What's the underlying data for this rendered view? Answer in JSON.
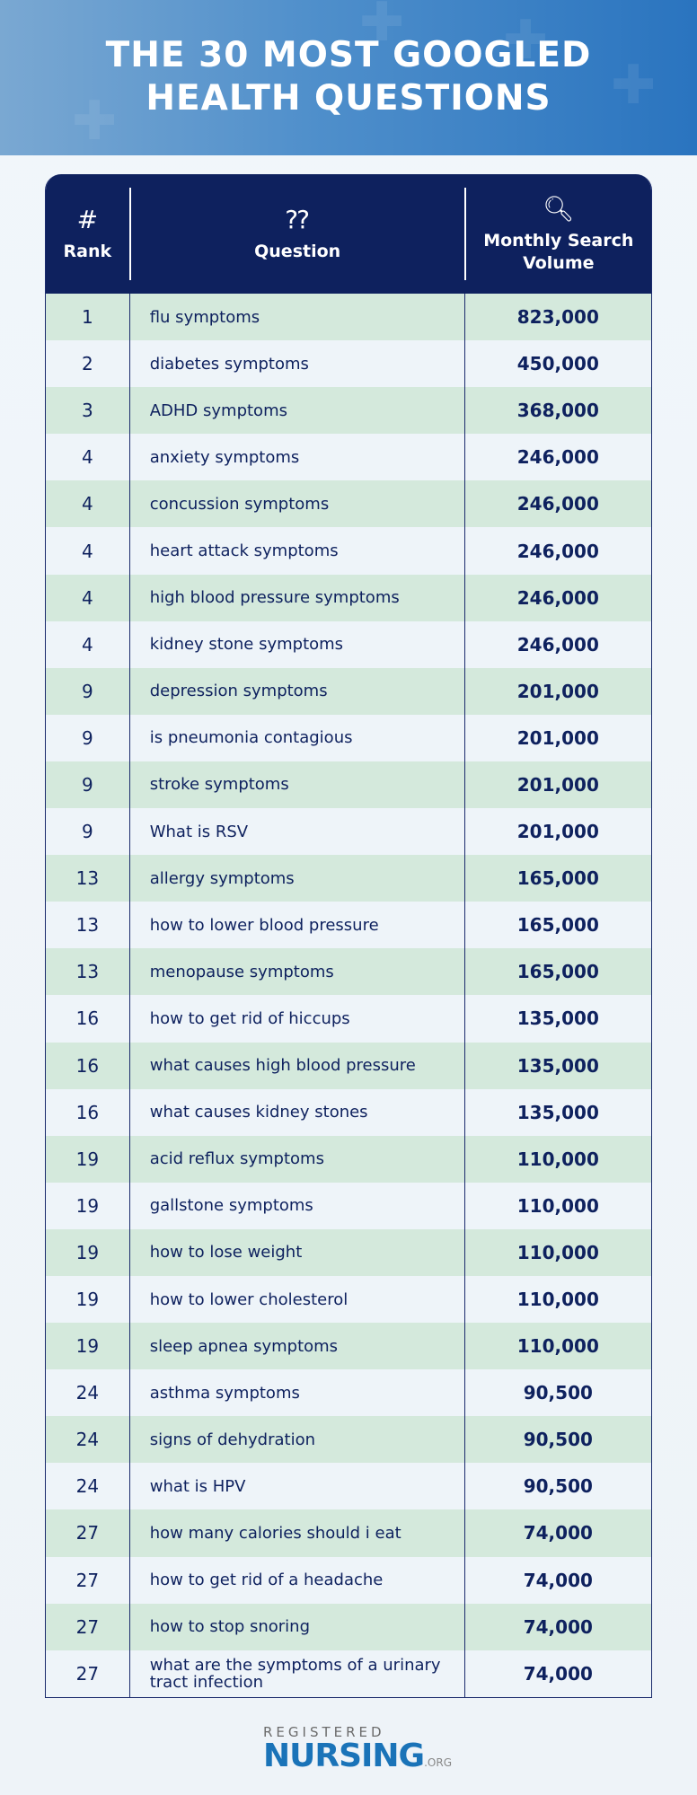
{
  "title": {
    "line1": "THE 30 MOST GOOGLED",
    "line2": "HEALTH QUESTIONS"
  },
  "header": {
    "rank": "Rank",
    "question": "Question",
    "volume": "Monthly Search Volume",
    "icons": [
      "hash-icon",
      "question-cloud-icon",
      "magnifier-icon"
    ]
  },
  "rows": [
    {
      "rank": "1",
      "q": "flu symptoms",
      "v": "823,000"
    },
    {
      "rank": "2",
      "q": "diabetes symptoms",
      "v": "450,000"
    },
    {
      "rank": "3",
      "q": "ADHD symptoms",
      "v": "368,000"
    },
    {
      "rank": "4",
      "q": "anxiety symptoms",
      "v": "246,000"
    },
    {
      "rank": "4",
      "q": "concussion symptoms",
      "v": "246,000"
    },
    {
      "rank": "4",
      "q": "heart attack symptoms",
      "v": "246,000"
    },
    {
      "rank": "4",
      "q": "high blood pressure symptoms",
      "v": "246,000"
    },
    {
      "rank": "4",
      "q": "kidney stone symptoms",
      "v": "246,000"
    },
    {
      "rank": "9",
      "q": "depression symptoms",
      "v": "201,000"
    },
    {
      "rank": "9",
      "q": "is pneumonia contagious",
      "v": "201,000"
    },
    {
      "rank": "9",
      "q": "stroke symptoms",
      "v": "201,000"
    },
    {
      "rank": "9",
      "q": "What is RSV",
      "v": "201,000"
    },
    {
      "rank": "13",
      "q": "allergy symptoms",
      "v": "165,000"
    },
    {
      "rank": "13",
      "q": "how to lower blood pressure",
      "v": "165,000"
    },
    {
      "rank": "13",
      "q": "menopause symptoms",
      "v": "165,000"
    },
    {
      "rank": "16",
      "q": "how to get rid of hiccups",
      "v": "135,000"
    },
    {
      "rank": "16",
      "q": "what causes high blood pressure",
      "v": "135,000"
    },
    {
      "rank": "16",
      "q": "what causes kidney stones",
      "v": "135,000"
    },
    {
      "rank": "19",
      "q": "acid reflux symptoms",
      "v": "110,000"
    },
    {
      "rank": "19",
      "q": "gallstone symptoms",
      "v": "110,000"
    },
    {
      "rank": "19",
      "q": "how to lose weight",
      "v": "110,000"
    },
    {
      "rank": "19",
      "q": "how to lower cholesterol",
      "v": "110,000"
    },
    {
      "rank": "19",
      "q": "sleep apnea symptoms",
      "v": "110,000"
    },
    {
      "rank": "24",
      "q": "asthma symptoms",
      "v": "90,500"
    },
    {
      "rank": "24",
      "q": "signs of dehydration",
      "v": "90,500"
    },
    {
      "rank": "24",
      "q": "what is HPV",
      "v": "90,500"
    },
    {
      "rank": "27",
      "q": "how many calories should i eat",
      "v": "74,000"
    },
    {
      "rank": "27",
      "q": "how to get rid of a headache",
      "v": "74,000"
    },
    {
      "rank": "27",
      "q": "how to stop snoring",
      "v": "74,000"
    },
    {
      "rank": "27",
      "q": "what are the symptoms of a urinary tract infection",
      "v": "74,000"
    }
  ],
  "logo": {
    "top": "REGISTERED",
    "main": "NURSING",
    "suffix": ".ORG"
  },
  "colors": {
    "header": "#0e215e",
    "row_green": "#d4e9dc",
    "row_light": "#eef4f9",
    "brand": "#1a73b8"
  }
}
